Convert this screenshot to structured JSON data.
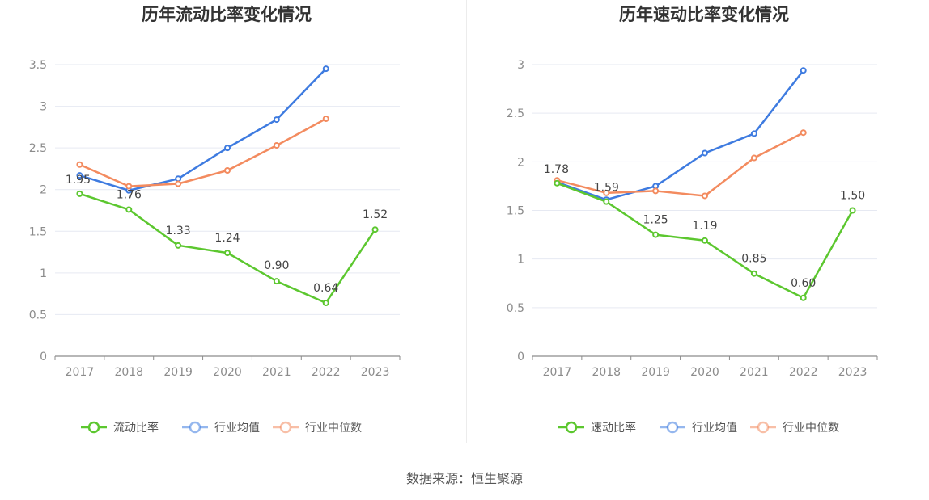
{
  "source_label": "数据来源：恒生聚源",
  "chart_data": [
    {
      "type": "line",
      "title": "历年流动比率变化情况",
      "categories": [
        "2017",
        "2018",
        "2019",
        "2020",
        "2021",
        "2022",
        "2023"
      ],
      "ylim": [
        0,
        3.5
      ],
      "yticks": [
        "0",
        "0.5",
        "1",
        "1.5",
        "2",
        "2.5",
        "3",
        "3.5"
      ],
      "grid": true,
      "legend_position": "bottom",
      "series": [
        {
          "name": "流动比率",
          "color": "#5cc72f",
          "values": [
            1.95,
            1.76,
            1.33,
            1.24,
            0.9,
            0.64,
            1.52
          ],
          "labels": [
            "1.95",
            "1.76",
            "1.33",
            "1.24",
            "0.90",
            "0.64",
            "1.52"
          ]
        },
        {
          "name": "行业均值",
          "color": "#3e7be0",
          "values": [
            2.17,
            1.99,
            2.13,
            2.5,
            2.84,
            3.45,
            null
          ]
        },
        {
          "name": "行业中位数",
          "color": "#f38b5f",
          "values": [
            2.3,
            2.04,
            2.07,
            2.23,
            2.53,
            2.85,
            null
          ]
        }
      ]
    },
    {
      "type": "line",
      "title": "历年速动比率变化情况",
      "categories": [
        "2017",
        "2018",
        "2019",
        "2020",
        "2021",
        "2022",
        "2023"
      ],
      "ylim": [
        0,
        3
      ],
      "yticks": [
        "0",
        "0.5",
        "1",
        "1.5",
        "2",
        "2.5",
        "3"
      ],
      "grid": true,
      "legend_position": "bottom",
      "series": [
        {
          "name": "速动比率",
          "color": "#5cc72f",
          "values": [
            1.78,
            1.59,
            1.25,
            1.19,
            0.85,
            0.6,
            1.5
          ],
          "labels": [
            "1.78",
            "1.59",
            "1.25",
            "1.19",
            "0.85",
            "0.60",
            "1.50"
          ]
        },
        {
          "name": "行业均值",
          "color": "#3e7be0",
          "values": [
            1.79,
            1.61,
            1.75,
            2.09,
            2.29,
            2.94,
            null
          ]
        },
        {
          "name": "行业中位数",
          "color": "#f38b5f",
          "values": [
            1.81,
            1.68,
            1.7,
            1.65,
            2.04,
            2.3,
            null
          ]
        }
      ]
    }
  ]
}
